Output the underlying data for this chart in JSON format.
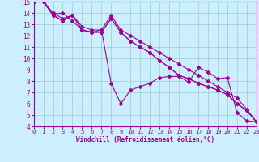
{
  "xlabel": "Windchill (Refroidissement éolien,°C)",
  "bg_color": "#cceeff",
  "line_color": "#990099",
  "grid_color": "#99cccc",
  "xlim": [
    0,
    23
  ],
  "ylim": [
    4,
    15
  ],
  "xticks": [
    0,
    1,
    2,
    3,
    4,
    5,
    6,
    7,
    8,
    9,
    10,
    11,
    12,
    13,
    14,
    15,
    16,
    17,
    18,
    19,
    20,
    21,
    22,
    23
  ],
  "yticks": [
    4,
    5,
    6,
    7,
    8,
    9,
    10,
    11,
    12,
    13,
    14,
    15
  ],
  "x_values": [
    0,
    1,
    2,
    3,
    4,
    5,
    6,
    7,
    8,
    9,
    10,
    11,
    12,
    13,
    14,
    15,
    16,
    17,
    18,
    19,
    20,
    21,
    22,
    23
  ],
  "series": [
    [
      15.0,
      15.1,
      13.9,
      14.0,
      13.3,
      12.5,
      12.3,
      12.5,
      7.8,
      6.0,
      7.2,
      7.5,
      7.8,
      8.3,
      8.4,
      8.4,
      7.9,
      9.2,
      8.8,
      8.2,
      8.3,
      5.2,
      4.5,
      4.4
    ],
    [
      15.0,
      15.0,
      13.8,
      13.3,
      13.8,
      12.5,
      12.3,
      12.3,
      13.5,
      12.3,
      11.5,
      11.0,
      10.5,
      9.8,
      9.2,
      8.5,
      8.2,
      7.8,
      7.5,
      7.2,
      6.8,
      6.0,
      5.4,
      4.4
    ],
    [
      15.0,
      15.0,
      13.8,
      13.3,
      13.8,
      12.5,
      12.3,
      12.3,
      13.5,
      12.3,
      11.5,
      11.0,
      10.5,
      9.8,
      9.2,
      8.5,
      8.2,
      7.8,
      7.5,
      7.2,
      6.8,
      6.0,
      5.4,
      4.4
    ],
    [
      15.0,
      15.0,
      14.0,
      13.5,
      13.8,
      12.8,
      12.5,
      12.5,
      13.8,
      12.5,
      12.0,
      11.5,
      11.0,
      10.5,
      10.0,
      9.5,
      9.0,
      8.5,
      8.0,
      7.5,
      7.0,
      6.5,
      5.5,
      4.4
    ]
  ]
}
